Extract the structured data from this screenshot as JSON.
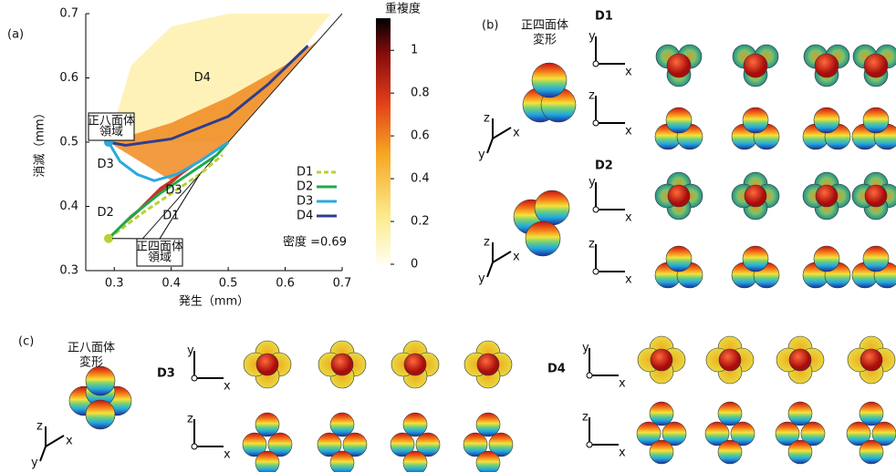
{
  "chart_data": {
    "type": "line",
    "panel_label": "(a)",
    "xlabel": "発生（mm）",
    "ylabel": "消滅（mm）",
    "xlim": [
      0.25,
      0.7
    ],
    "ylim": [
      0.3,
      0.7
    ],
    "xticks": [
      0.3,
      0.4,
      0.5,
      0.6,
      0.7
    ],
    "yticks": [
      0.3,
      0.4,
      0.5,
      0.6,
      0.7
    ],
    "legend": "lower right",
    "series": [
      {
        "name": "D1",
        "color": "#b5d334",
        "dash": true,
        "x": [
          0.29,
          0.35,
          0.4,
          0.45,
          0.49
        ],
        "values": [
          0.35,
          0.39,
          0.42,
          0.45,
          0.48
        ]
      },
      {
        "name": "D2",
        "color": "#1fa84a",
        "x": [
          0.29,
          0.33,
          0.38,
          0.43,
          0.48,
          0.5
        ],
        "values": [
          0.35,
          0.385,
          0.42,
          0.45,
          0.48,
          0.5
        ]
      },
      {
        "name": "D3",
        "color": "#2aa9e0",
        "x": [
          0.29,
          0.31,
          0.34,
          0.37,
          0.41,
          0.45,
          0.5
        ],
        "values": [
          0.5,
          0.47,
          0.45,
          0.44,
          0.45,
          0.47,
          0.5
        ]
      },
      {
        "name": "D4",
        "color": "#2e3d8f",
        "x": [
          0.29,
          0.32,
          0.4,
          0.5,
          0.57,
          0.64
        ],
        "values": [
          0.5,
          0.495,
          0.505,
          0.54,
          0.59,
          0.65
        ]
      }
    ],
    "annotations": {
      "density": "密度 =0.69",
      "octa_region": [
        "正八面体",
        "領域"
      ],
      "tetra_region": [
        "正四面体",
        "領域"
      ]
    },
    "colorbar": {
      "label": "重複度",
      "lim": [
        0,
        1.15
      ],
      "ticks": [
        0,
        0.2,
        0.4,
        0.6,
        0.8,
        1
      ]
    }
  },
  "figure": {
    "panel_b": "(b)",
    "panel_c": "(c)",
    "tetra_title": [
      "正四面体",
      "変形"
    ],
    "octa_title": [
      "正八面体",
      "変形"
    ],
    "axes": [
      "x",
      "y",
      "z"
    ]
  }
}
